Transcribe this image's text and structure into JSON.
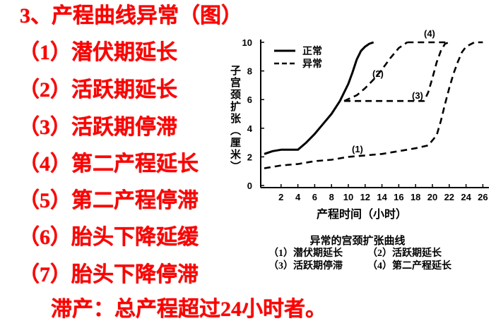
{
  "title": "3、产程曲线异常（图）",
  "list": [
    "（1）潜伏期延长",
    "（2）活跃期延长",
    "（3）活跃期停滞",
    "（4）第二产程延长",
    "（5）第二产程停滞",
    "（6）胎头下降延缓",
    "（7）胎头下降停滞"
  ],
  "bottom_note": "滞产：总产程超过24小时者。",
  "colors": {
    "text_red": "#ff0000",
    "chart_ink": "#000000"
  },
  "chart_data": {
    "type": "line",
    "ylabel": "子宫颈扩张（厘米）",
    "xlabel": "产程时间（小时）",
    "y_ticks": [
      0,
      2,
      4,
      6,
      8,
      10
    ],
    "x_ticks": [
      2,
      4,
      6,
      8,
      10,
      12,
      14,
      16,
      18,
      20,
      22,
      24,
      26
    ],
    "ylim": [
      0,
      10
    ],
    "xlim": [
      0,
      27
    ],
    "legend": [
      {
        "label": "正常",
        "style": "solid"
      },
      {
        "label": "异常",
        "style": "dashed"
      }
    ],
    "series": [
      {
        "style": "solid",
        "marker": "",
        "points": [
          [
            0,
            2.2
          ],
          [
            1,
            2.4
          ],
          [
            2,
            2.5
          ],
          [
            3,
            2.5
          ],
          [
            4,
            2.5
          ],
          [
            5,
            3.0
          ],
          [
            6,
            3.6
          ],
          [
            7,
            4.3
          ],
          [
            8,
            5.0
          ],
          [
            9,
            5.9
          ],
          [
            10,
            7.1
          ],
          [
            10.5,
            7.9
          ],
          [
            11,
            8.8
          ],
          [
            11.5,
            9.4
          ],
          [
            12,
            9.7
          ],
          [
            12.5,
            9.9
          ],
          [
            13,
            10
          ]
        ]
      },
      {
        "style": "dashed",
        "marker": "(1)",
        "points": [
          [
            0,
            1.2
          ],
          [
            2,
            1.4
          ],
          [
            4,
            1.5
          ],
          [
            6,
            1.7
          ],
          [
            8,
            1.8
          ],
          [
            10,
            2.0
          ],
          [
            12,
            2.1
          ],
          [
            14,
            2.2
          ],
          [
            16,
            2.4
          ],
          [
            18,
            2.6
          ],
          [
            19.5,
            2.8
          ],
          [
            20.5,
            3.5
          ],
          [
            21,
            4.5
          ],
          [
            21.5,
            5.7
          ],
          [
            22,
            6.8
          ],
          [
            22.5,
            7.8
          ],
          [
            23,
            8.6
          ],
          [
            23.5,
            9.3
          ],
          [
            24,
            9.7
          ],
          [
            25,
            10
          ],
          [
            26,
            10
          ]
        ]
      },
      {
        "style": "dashed",
        "marker": "(2)",
        "points": [
          [
            9.5,
            5.9
          ],
          [
            11,
            6.3
          ],
          [
            12,
            6.8
          ],
          [
            13,
            7.4
          ],
          [
            14,
            8.1
          ],
          [
            15,
            8.9
          ],
          [
            16,
            9.6
          ],
          [
            17,
            10
          ]
        ]
      },
      {
        "style": "dashed",
        "marker": "(3)",
        "points": [
          [
            9.5,
            5.9
          ],
          [
            14,
            5.9
          ],
          [
            19,
            5.9
          ],
          [
            19.5,
            6.5
          ],
          [
            20,
            7.5
          ],
          [
            20.5,
            8.6
          ],
          [
            21,
            9.4
          ],
          [
            21.5,
            9.9
          ],
          [
            22,
            10
          ]
        ]
      },
      {
        "style": "dashed",
        "marker": "(4)",
        "points": [
          [
            17,
            10
          ],
          [
            22,
            10
          ]
        ]
      }
    ],
    "caption": {
      "title": "异常的宫颈扩张曲线",
      "items": [
        "（1）潜伏期延长",
        "（2）活跃期延长",
        "（3）活跃期停滞",
        "（4）第二产程延长"
      ]
    }
  }
}
